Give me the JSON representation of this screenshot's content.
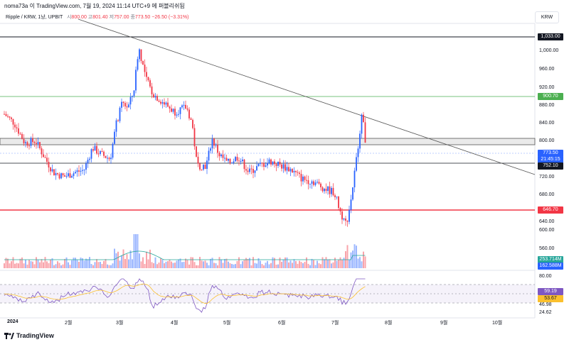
{
  "header": {
    "caption": "noma73a 이 TradingView.com, 7월 19, 2024 11:14 UTC+9 에 퍼블리쉬됨",
    "symbol": "Ripple / KRW, 1낭, UPBIT",
    "open_label": "시",
    "open_value": "800.00",
    "high_label": "고",
    "high_value": "801.40",
    "low_label": "저",
    "low_value": "757.00",
    "close_label": "종",
    "close_value": "773.50",
    "change": "−26.50 (−3.31%)",
    "currency_button": "KRW"
  },
  "price_axis": {
    "ticks": [
      "1,000.00",
      "960.00",
      "920.00",
      "880.00",
      "840.00",
      "800.00",
      "720.00",
      "680.00",
      "640.00",
      "600.00",
      "560.00"
    ],
    "tags": {
      "high_line": "1,033.00",
      "green_line": "900.70",
      "current_price": "773.50",
      "countdown": "21:45:15",
      "support_line": "752.10",
      "red_line": "646.70",
      "vol_ma": "253.714M",
      "vol_bar": "162.588M",
      "rsi_value": "59.19",
      "rsi_ma": "53.67"
    }
  },
  "rsi_axis": {
    "ticks": [
      "80.00",
      "46.98",
      "24.62"
    ]
  },
  "time_axis": {
    "labels": [
      "2024",
      "2월",
      "3월",
      "4월",
      "5월",
      "6월",
      "7월",
      "8월",
      "9월",
      "10월"
    ]
  },
  "colors": {
    "up": "#2962ff",
    "down": "#f23645",
    "ma": "#26a69a",
    "rsi": "#7e57c2",
    "rsi_ma": "#fbc02d"
  },
  "footer": {
    "brand": "TradingView",
    "logo_icon": "tradingview-logo-icon"
  }
}
